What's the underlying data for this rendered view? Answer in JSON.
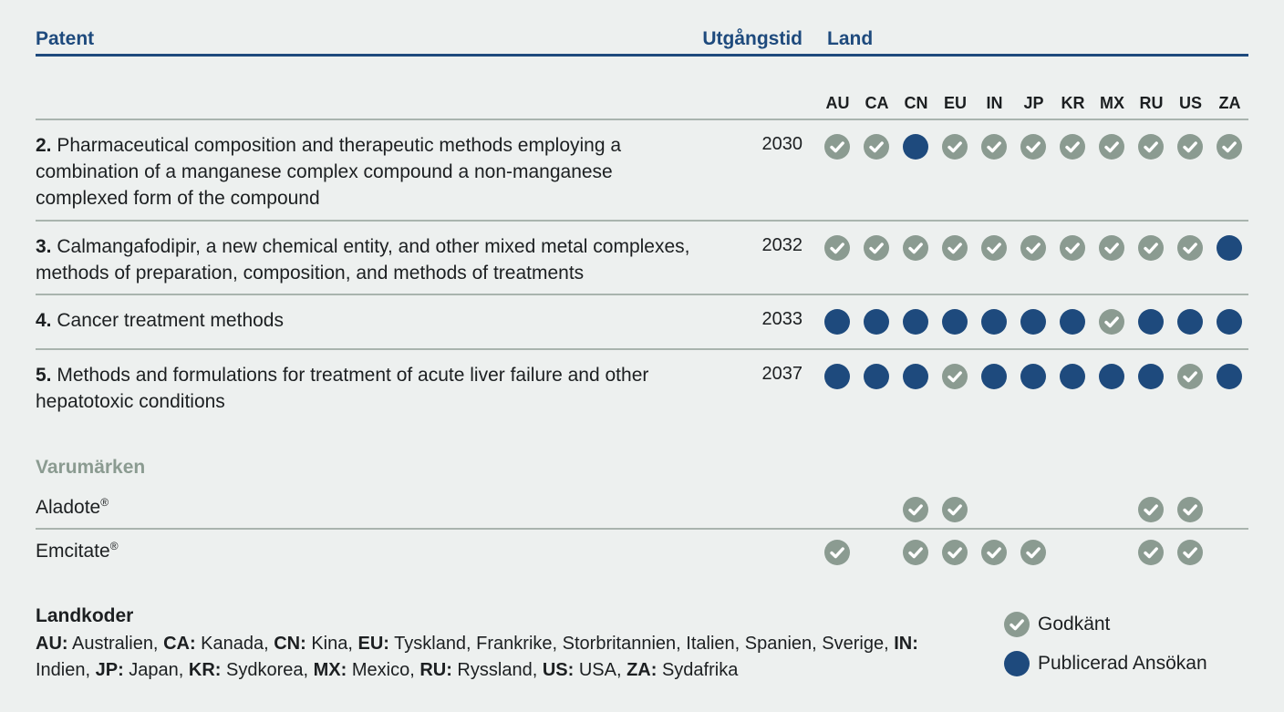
{
  "headers": {
    "patent": "Patent",
    "expiry": "Utgångstid",
    "country": "Land"
  },
  "countries": [
    "AU",
    "CA",
    "CN",
    "EU",
    "IN",
    "JP",
    "KR",
    "MX",
    "RU",
    "US",
    "ZA"
  ],
  "patents": [
    {
      "number": "2.",
      "title": "Pharmaceutical composition and therapeutic methods employing a combination of a manganese complex compound a non-manganese complexed form of the compound",
      "year": "2030",
      "status": [
        "godkant",
        "godkant",
        "publicerad",
        "godkant",
        "godkant",
        "godkant",
        "godkant",
        "godkant",
        "godkant",
        "godkant",
        "godkant"
      ]
    },
    {
      "number": "3.",
      "title": "Calmangafodipir, a new chemical entity, and other mixed metal complexes, methods of preparation, composition, and methods of treatments",
      "year": "2032",
      "status": [
        "godkant",
        "godkant",
        "godkant",
        "godkant",
        "godkant",
        "godkant",
        "godkant",
        "godkant",
        "godkant",
        "godkant",
        "publicerad"
      ]
    },
    {
      "number": "4.",
      "title": "Cancer treatment methods",
      "year": "2033",
      "status": [
        "publicerad",
        "publicerad",
        "publicerad",
        "publicerad",
        "publicerad",
        "publicerad",
        "publicerad",
        "godkant",
        "publicerad",
        "publicerad",
        "publicerad"
      ]
    },
    {
      "number": "5.",
      "title": "Methods and formulations for treatment of acute liver failure and other hepatotoxic conditions",
      "year": "2037",
      "status": [
        "publicerad",
        "publicerad",
        "publicerad",
        "godkant",
        "publicerad",
        "publicerad",
        "publicerad",
        "publicerad",
        "publicerad",
        "godkant",
        "publicerad"
      ]
    }
  ],
  "trademarks_title": "Varumärken",
  "trademarks": [
    {
      "name": "Aladote",
      "mark": "®",
      "status": [
        null,
        null,
        "godkant",
        "godkant",
        null,
        null,
        null,
        null,
        "godkant",
        "godkant",
        null
      ]
    },
    {
      "name": "Emcitate",
      "mark": "®",
      "status": [
        "godkant",
        null,
        "godkant",
        "godkant",
        "godkant",
        "godkant",
        null,
        null,
        "godkant",
        "godkant",
        null
      ]
    }
  ],
  "country_codes": {
    "title": "Landkoder",
    "entries": [
      {
        "code": "AU:",
        "name": "Australien"
      },
      {
        "code": "CA:",
        "name": "Kanada"
      },
      {
        "code": "CN:",
        "name": "Kina"
      },
      {
        "code": "EU:",
        "name": "Tyskland, Frankrike, Storbritannien, Italien, Spanien, Sverige"
      },
      {
        "code": "IN:",
        "name": "Indien"
      },
      {
        "code": "JP:",
        "name": "Japan"
      },
      {
        "code": "KR:",
        "name": "Sydkorea"
      },
      {
        "code": "MX:",
        "name": "Mexico"
      },
      {
        "code": "RU:",
        "name": "Ryssland"
      },
      {
        "code": "US:",
        "name": "USA"
      },
      {
        "code": "ZA:",
        "name": "Sydafrika"
      }
    ]
  },
  "legend": {
    "approved": "Godkänt",
    "published": "Publicerad Ansökan",
    "approved_icon": "check-circle-icon",
    "published_icon": "filled-circle-icon"
  },
  "colors": {
    "navy": "#1e4a7d",
    "approved_gray": "#8b9b91",
    "muted_green": "#8b9b91",
    "background": "#edf0ef"
  }
}
